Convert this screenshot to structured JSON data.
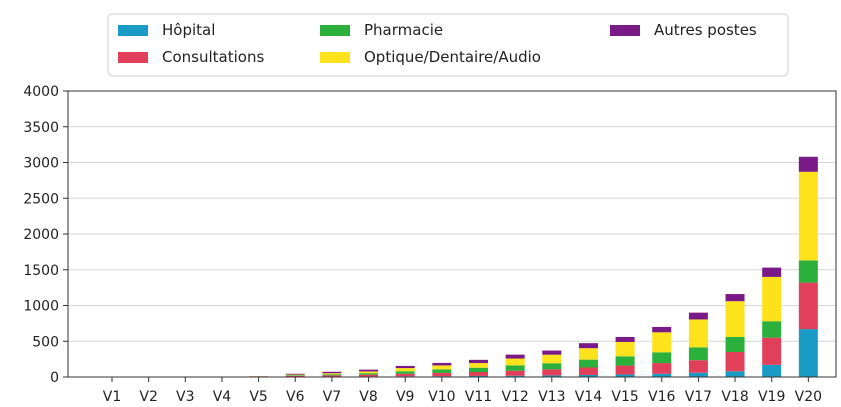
{
  "chart_data": {
    "type": "bar",
    "stacked": true,
    "categories": [
      "V1",
      "V2",
      "V3",
      "V4",
      "V5",
      "V6",
      "V7",
      "V8",
      "V9",
      "V10",
      "V11",
      "V12",
      "V13",
      "V14",
      "V15",
      "V16",
      "V17",
      "V18",
      "V19",
      "V20"
    ],
    "series": [
      {
        "name": "Hôpital",
        "color": "#1a9bc6",
        "values": [
          0,
          0,
          0,
          0,
          1,
          3,
          5,
          8,
          10,
          12,
          15,
          18,
          22,
          28,
          35,
          45,
          60,
          80,
          170,
          670
        ]
      },
      {
        "name": "Consultations",
        "color": "#e2405a",
        "values": [
          0,
          0,
          0,
          0,
          3,
          12,
          18,
          25,
          35,
          45,
          55,
          70,
          85,
          105,
          125,
          150,
          175,
          270,
          380,
          650
        ]
      },
      {
        "name": "Pharmacie",
        "color": "#2bb03c",
        "values": [
          0,
          0,
          0,
          0,
          3,
          10,
          15,
          20,
          35,
          50,
          60,
          75,
          85,
          110,
          130,
          150,
          180,
          210,
          230,
          310
        ]
      },
      {
        "name": "Optique/Dentaire/Audio",
        "color": "#fde21c",
        "values": [
          0,
          0,
          0,
          0,
          3,
          8,
          15,
          25,
          45,
          55,
          65,
          95,
          120,
          160,
          200,
          280,
          390,
          500,
          620,
          1240
        ]
      },
      {
        "name": "Autres postes",
        "color": "#7a1a86",
        "values": [
          0,
          0,
          0,
          0,
          2,
          12,
          20,
          25,
          30,
          35,
          45,
          55,
          58,
          70,
          70,
          75,
          95,
          100,
          130,
          210
        ]
      }
    ],
    "ylim": [
      0,
      4000
    ],
    "yticks": [
      0,
      500,
      1000,
      1500,
      2000,
      2500,
      3000,
      3500,
      4000
    ],
    "grid": "horizontal",
    "legend": "top-center",
    "title": "",
    "xlabel": "",
    "ylabel": ""
  }
}
